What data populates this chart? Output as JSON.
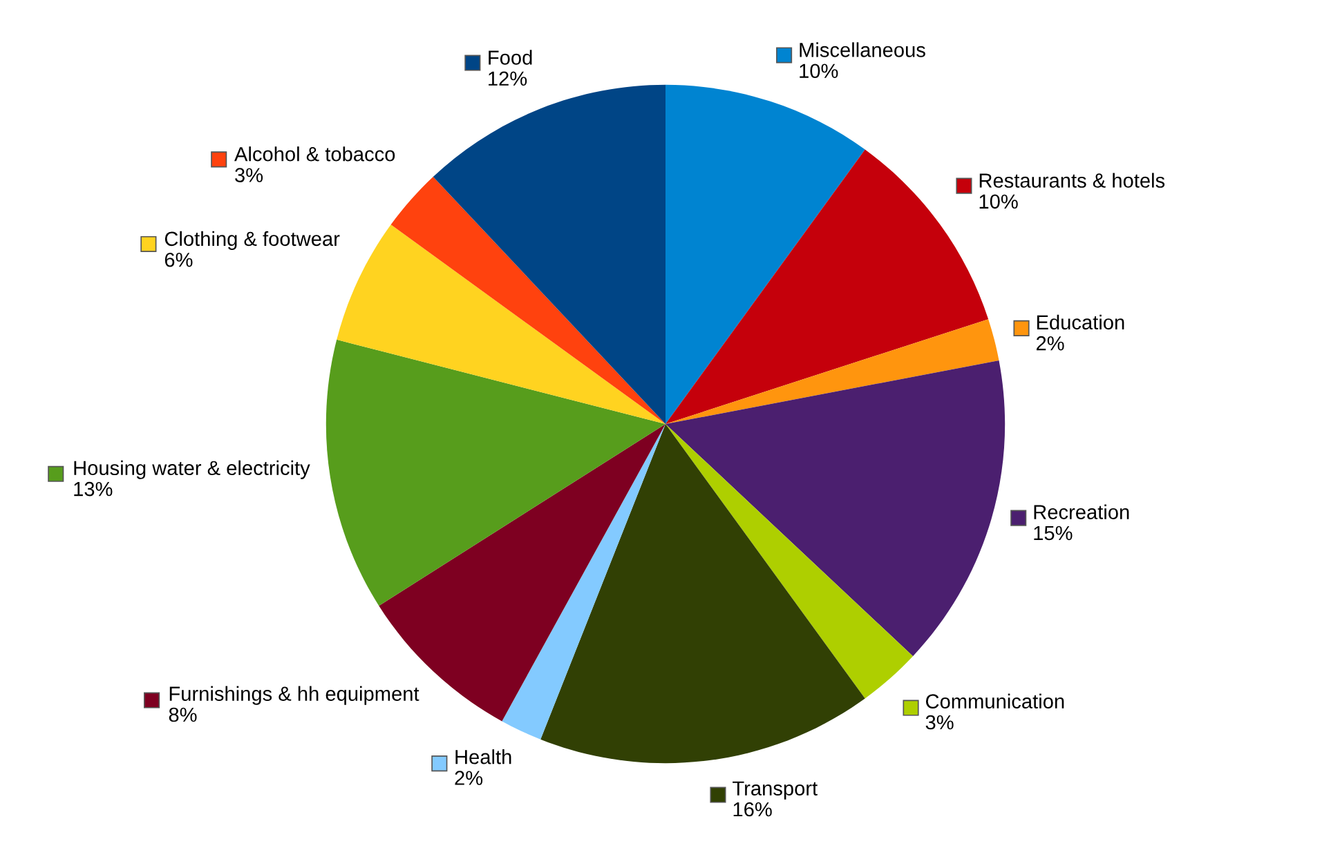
{
  "chart_data": {
    "type": "pie",
    "legend": "top left",
    "value_labels": [
      "10%",
      "10%",
      "2%",
      "15%",
      "3%",
      "16%",
      "2%",
      "8%",
      "13%",
      "6%",
      "3%",
      "12%"
    ],
    "categories": [
      "Miscellaneous",
      "Restaurants & hotels",
      "Education",
      "Recreation",
      "Communication",
      "Transport",
      "Health",
      "Furnishings & hh equipment",
      "Housing water & electricity",
      "Clothing & footwear",
      "Alcohol & tobacco",
      "Food"
    ],
    "values": [
      10,
      10,
      2,
      15,
      3,
      16,
      2,
      8,
      13,
      6,
      3,
      12
    ],
    "colors": [
      "#0084d1",
      "#c5000b",
      "#ff950e",
      "#4b1f6f",
      "#aecf00",
      "#314004",
      "#83caff",
      "#7e0021",
      "#579d1c",
      "#ffd320",
      "#ff420e",
      "#004586"
    ]
  }
}
